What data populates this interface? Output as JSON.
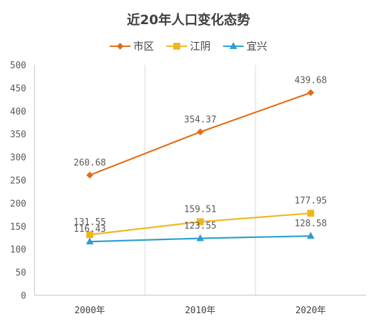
{
  "chart_data": {
    "type": "line",
    "title": "近20年人口变化态势",
    "categories": [
      "2000年",
      "2010年",
      "2020年"
    ],
    "ylim": [
      0,
      500
    ],
    "yticks": [
      0,
      50,
      100,
      150,
      200,
      250,
      300,
      350,
      400,
      450,
      500
    ],
    "grid": "vertical",
    "legend": "top",
    "series": [
      {
        "name": "市区",
        "values": [
          260.68,
          354.37,
          439.68
        ],
        "color": "#E46C19",
        "marker": "diamond"
      },
      {
        "name": "江阴",
        "values": [
          131.55,
          159.51,
          177.95
        ],
        "color": "#F2B61D",
        "marker": "square"
      },
      {
        "name": "宜兴",
        "values": [
          116.43,
          123.55,
          128.58
        ],
        "color": "#2B9FD0",
        "marker": "triangle"
      }
    ]
  }
}
